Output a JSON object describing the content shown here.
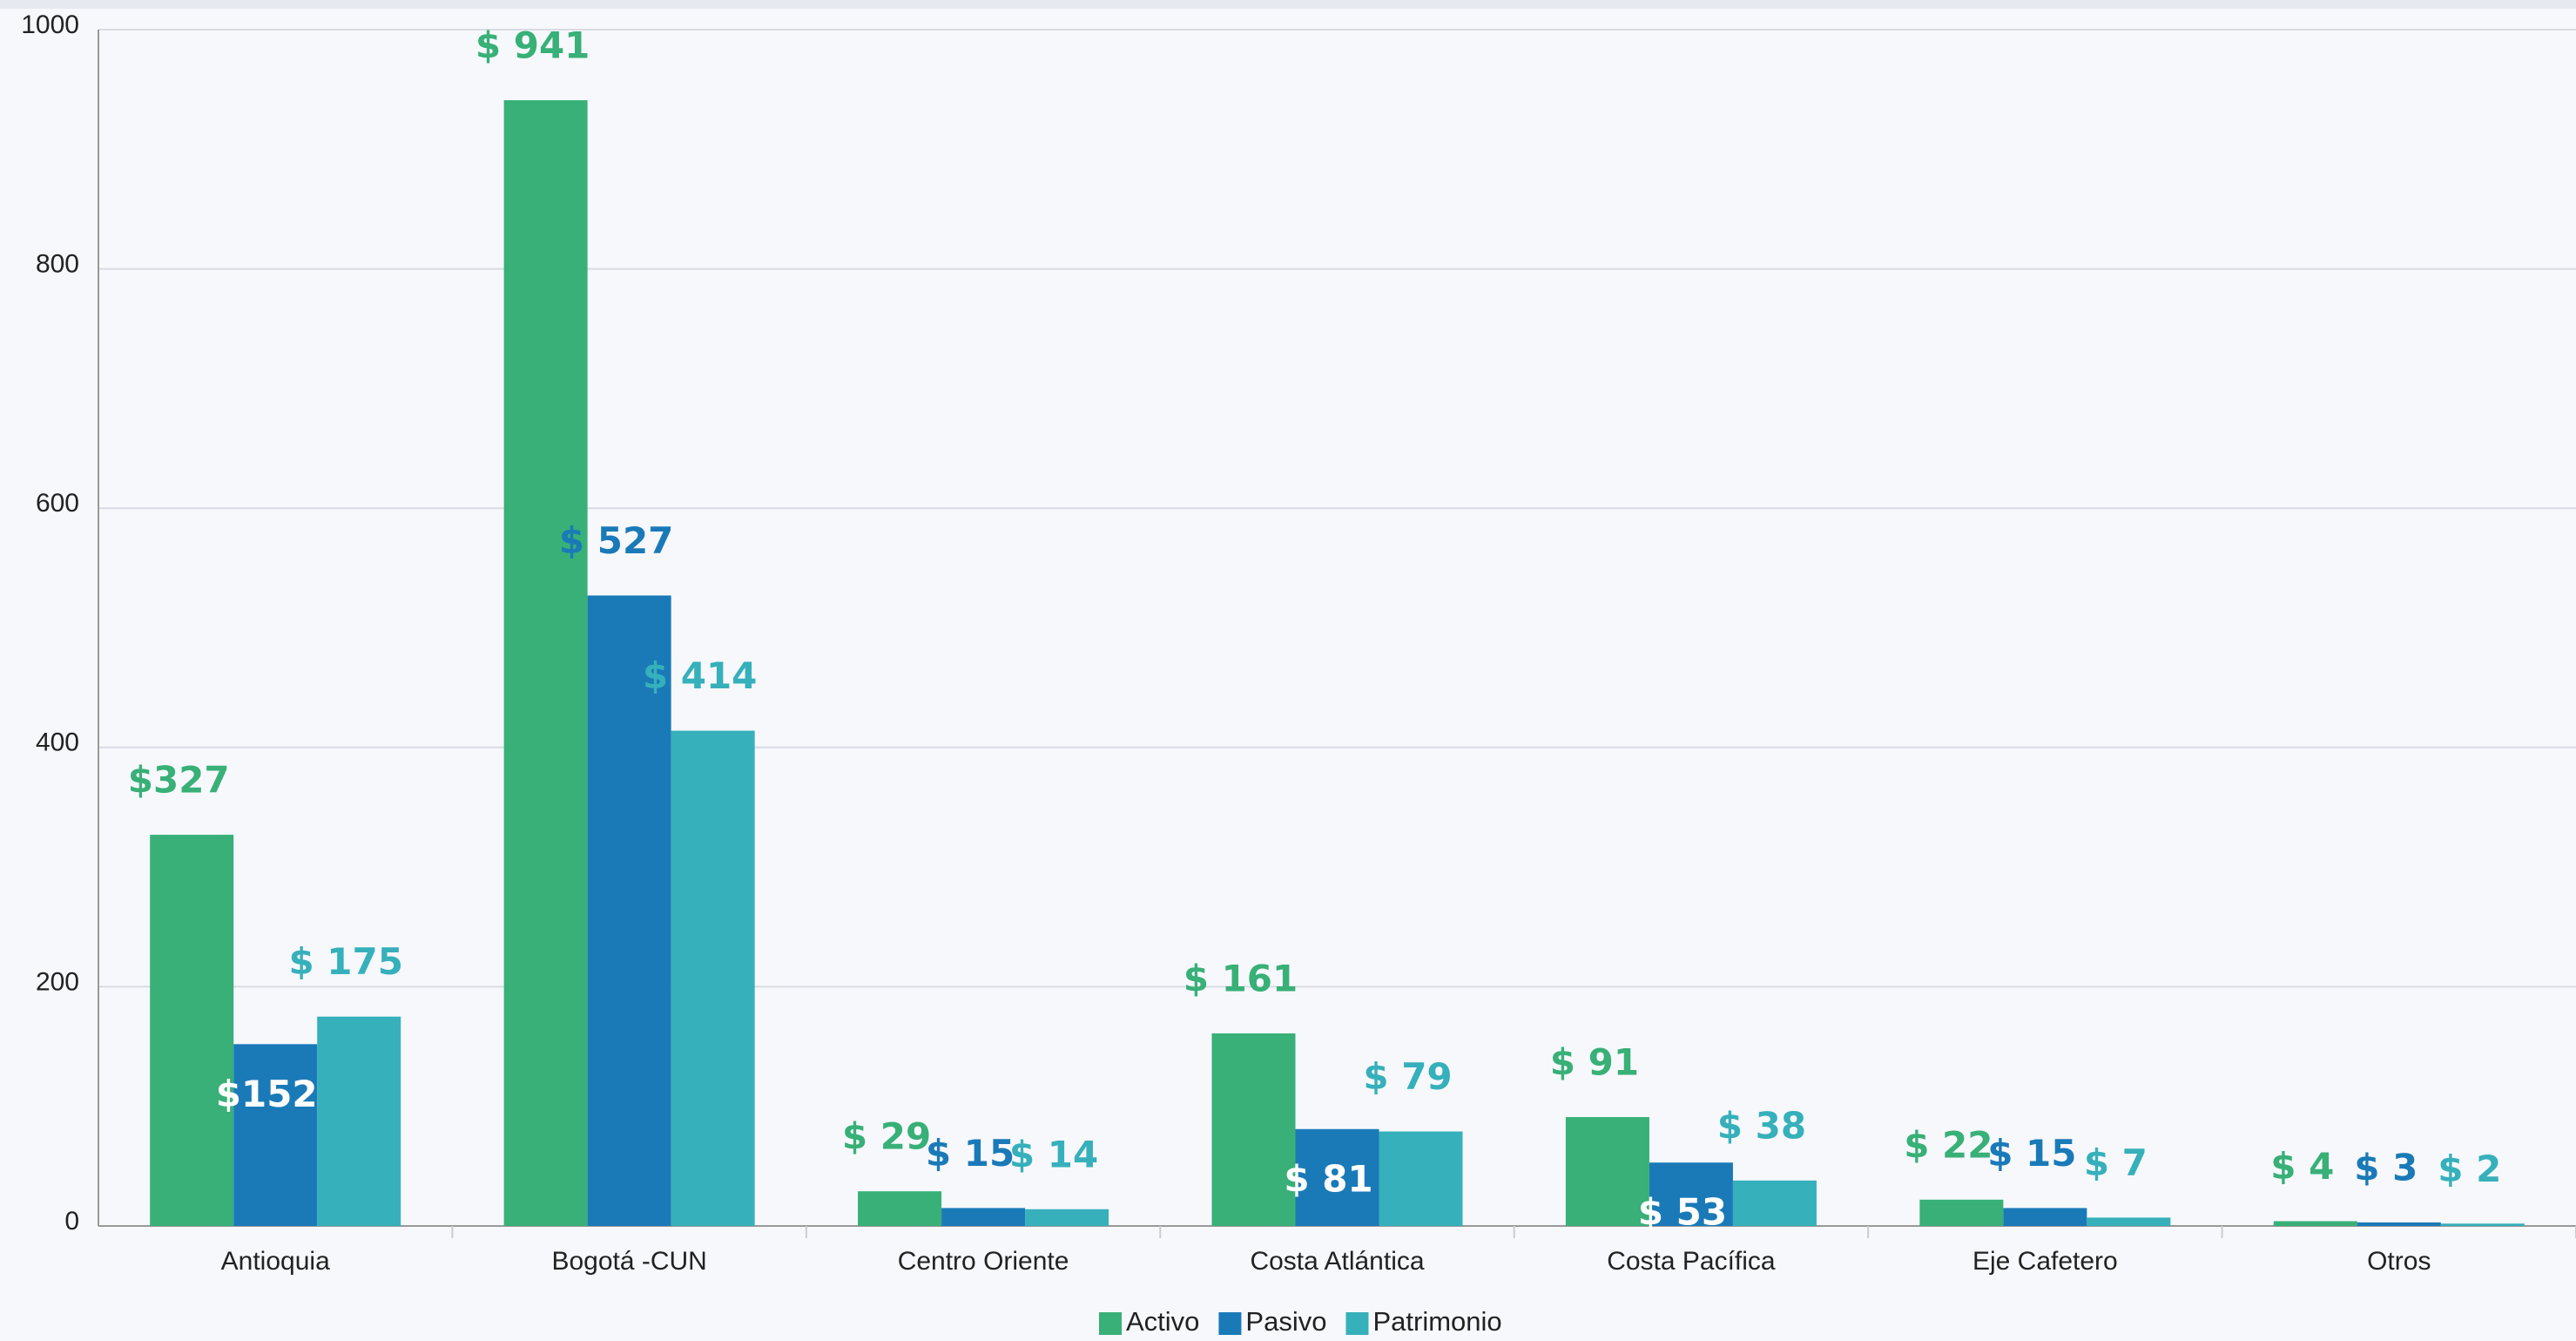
{
  "chart_data": {
    "type": "bar",
    "categories": [
      "Antioquia",
      "Bogotá -CUN",
      "Centro Oriente",
      "Costa Atlántica",
      "Costa Pacífica",
      "Eje Cafetero",
      "Otros"
    ],
    "series": [
      {
        "name": "Activo",
        "color": "#38b077",
        "values": [
          327,
          941,
          29,
          161,
          91,
          22,
          4
        ],
        "value_labels": [
          "$327",
          "$ 941",
          "$ 29",
          "$ 161",
          "$ 91",
          "$ 22",
          "$ 4"
        ]
      },
      {
        "name": "Pasivo",
        "color": "#1a7ab8",
        "values": [
          152,
          527,
          15,
          81,
          53,
          15,
          3
        ],
        "value_labels": [
          "$152",
          "$ 527",
          "$ 15",
          "$ 81",
          "$ 53",
          "$ 15",
          "$ 3"
        ]
      },
      {
        "name": "Patrimonio",
        "color": "#36b0bb",
        "values": [
          175,
          414,
          14,
          79,
          38,
          7,
          2
        ],
        "value_labels": [
          "$ 175",
          "$ 414",
          "$ 14",
          "$ 79",
          "$ 38",
          "$ 7",
          "$ 2"
        ]
      }
    ],
    "ylim": [
      0,
      1000
    ],
    "yticks": [
      0,
      200,
      400,
      600,
      800,
      1000
    ],
    "grid": true,
    "legend": "bottom"
  }
}
